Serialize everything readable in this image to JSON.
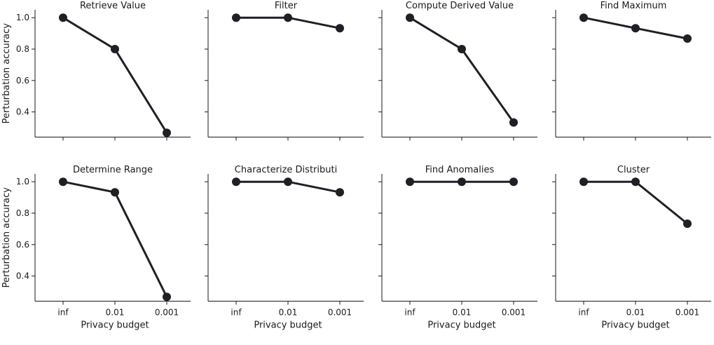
{
  "chart_data": [
    {
      "type": "line",
      "title": "Retrieve Value",
      "x": [
        "inf",
        "0.01",
        "0.001"
      ],
      "values": [
        1.0,
        0.8,
        0.267
      ],
      "xlabel": "",
      "ylabel": "Perturbation accuracy",
      "ylim": [
        0.24,
        1.05
      ],
      "grid": false
    },
    {
      "type": "line",
      "title": "Filter",
      "x": [
        "inf",
        "0.01",
        "0.001"
      ],
      "values": [
        1.0,
        1.0,
        0.933
      ],
      "xlabel": "",
      "ylabel": "",
      "ylim": [
        0.24,
        1.05
      ],
      "grid": false
    },
    {
      "type": "line",
      "title": "Compute Derived Value",
      "x": [
        "inf",
        "0.01",
        "0.001"
      ],
      "values": [
        1.0,
        0.8,
        0.333
      ],
      "xlabel": "",
      "ylabel": "",
      "ylim": [
        0.24,
        1.05
      ],
      "grid": false
    },
    {
      "type": "line",
      "title": "Find Maximum",
      "x": [
        "inf",
        "0.01",
        "0.001"
      ],
      "values": [
        1.0,
        0.933,
        0.867
      ],
      "xlabel": "",
      "ylabel": "",
      "ylim": [
        0.24,
        1.05
      ],
      "grid": false
    },
    {
      "type": "line",
      "title": "Determine Range",
      "x": [
        "inf",
        "0.01",
        "0.001"
      ],
      "values": [
        1.0,
        0.933,
        0.267
      ],
      "xlabel": "Privacy budget",
      "ylabel": "Perturbation accuracy",
      "ylim": [
        0.24,
        1.05
      ],
      "grid": false
    },
    {
      "type": "line",
      "title": "Characterize Distributi",
      "x": [
        "inf",
        "0.01",
        "0.001"
      ],
      "values": [
        1.0,
        1.0,
        0.933
      ],
      "xlabel": "Privacy budget",
      "ylabel": "",
      "ylim": [
        0.24,
        1.05
      ],
      "grid": false
    },
    {
      "type": "line",
      "title": "Find Anomalies",
      "x": [
        "inf",
        "0.01",
        "0.001"
      ],
      "values": [
        1.0,
        1.0,
        1.0
      ],
      "xlabel": "Privacy budget",
      "ylabel": "",
      "ylim": [
        0.24,
        1.05
      ],
      "grid": false
    },
    {
      "type": "line",
      "title": "Cluster",
      "x": [
        "inf",
        "0.01",
        "0.001"
      ],
      "values": [
        1.0,
        1.0,
        0.733
      ],
      "xlabel": "Privacy budget",
      "ylabel": "",
      "ylim": [
        0.24,
        1.05
      ],
      "grid": false
    }
  ],
  "yticks": [
    "1.0",
    "0.8",
    "0.6",
    "0.4"
  ],
  "colors": {
    "series": "#1f1f26",
    "axis": "#1a1a1a"
  }
}
